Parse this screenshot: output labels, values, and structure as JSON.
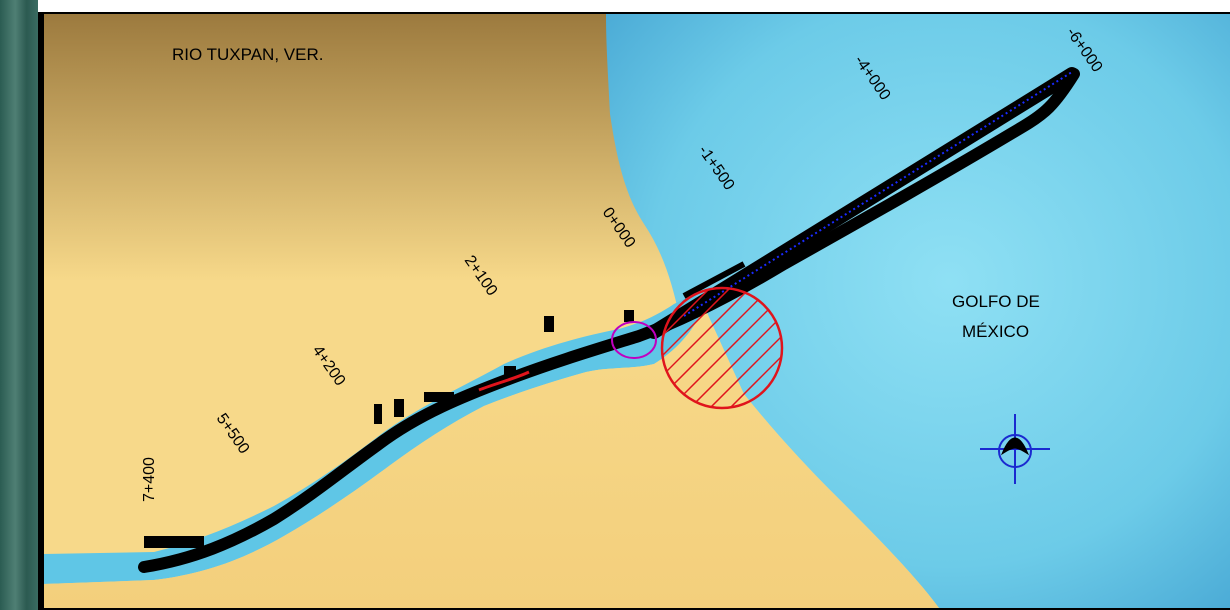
{
  "map": {
    "region_label": "RIO TUXPAN, VER.",
    "sea_label_line1": "GOLFO DE",
    "sea_label_line2": "MÉXICO",
    "chainages": [
      "-6+000",
      "-4+000",
      "-1+500",
      "0+000",
      "2+100",
      "4+200",
      "5+500",
      "7+400"
    ],
    "colors": {
      "land_light": "#f7d98a",
      "land_dark": "#9c7a3e",
      "sea": "#7fd6ee",
      "channel": "#000000",
      "axis_dotted": "#1a2aff",
      "hatched_zone": "#e0141c",
      "basin_outline": "#c000c0",
      "compass": "#1a2ad0"
    },
    "icons": [
      "north-arrow-compass-icon"
    ]
  }
}
